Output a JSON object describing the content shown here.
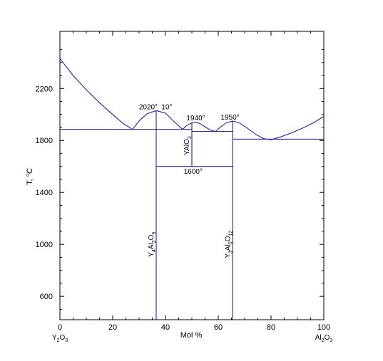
{
  "chart_data": {
    "type": "line",
    "title": "",
    "xlabel": "Mol %",
    "ylabel": "T, °C",
    "xlim": [
      0,
      100
    ],
    "ylim": [
      420,
      2640
    ],
    "x_ticks": [
      0,
      20,
      40,
      60,
      80,
      100
    ],
    "y_ticks": [
      600,
      1000,
      1400,
      1800,
      2200
    ],
    "end_members": {
      "left": {
        "base": "Y",
        "sub1": "2",
        "mid": "O",
        "sub2": "3"
      },
      "right": {
        "base": "Al",
        "sub1": "2",
        "mid": "O",
        "sub2": "3"
      }
    },
    "line_color": "#2222aa",
    "axis_color": "#000000",
    "grid": false,
    "series": [
      {
        "x": [
          0,
          5,
          10,
          15,
          20,
          24,
          27.5
        ],
        "y": [
          2430,
          2300,
          2190,
          2090,
          2000,
          1930,
          1885
        ]
      },
      {
        "x": [
          27.5,
          30,
          33,
          36.5,
          40,
          43,
          46.5
        ],
        "y": [
          1885,
          1950,
          2005,
          2030,
          2010,
          1950,
          1885
        ]
      },
      {
        "x": [
          46.5,
          48,
          50,
          51.5,
          53,
          55,
          57,
          59
        ],
        "y": [
          1885,
          1915,
          1935,
          1940,
          1932,
          1905,
          1880,
          1870
        ]
      },
      {
        "x": [
          59,
          61,
          63,
          65.5,
          68,
          71,
          74,
          77,
          80
        ],
        "y": [
          1870,
          1905,
          1935,
          1950,
          1935,
          1895,
          1850,
          1815,
          1805
        ]
      },
      {
        "x": [
          80,
          84,
          88,
          92,
          96,
          100
        ],
        "y": [
          1805,
          1830,
          1860,
          1895,
          1935,
          1985
        ]
      },
      {
        "x": [
          0,
          36.5
        ],
        "y": [
          1885,
          1885
        ]
      },
      {
        "x": [
          36.5,
          50
        ],
        "y": [
          1885,
          1885
        ]
      },
      {
        "x": [
          50,
          65.5
        ],
        "y": [
          1870,
          1870
        ]
      },
      {
        "x": [
          65.5,
          100
        ],
        "y": [
          1810,
          1810
        ]
      },
      {
        "x": [
          36.5,
          36.5
        ],
        "y": [
          420,
          2030
        ]
      },
      {
        "x": [
          50,
          50
        ],
        "y": [
          1600,
          1940
        ]
      },
      {
        "x": [
          65.5,
          65.5
        ],
        "y": [
          420,
          1950
        ]
      },
      {
        "x": [
          36.5,
          65.5
        ],
        "y": [
          1600,
          1600
        ]
      }
    ],
    "annotations": [
      {
        "text": "2020°",
        "x": 33.5,
        "y": 2040
      },
      {
        "text": "10°",
        "x": 40.5,
        "y": 2040
      },
      {
        "text": "1940°",
        "x": 51.5,
        "y": 1955
      },
      {
        "text": "1950°",
        "x": 64.5,
        "y": 1960
      },
      {
        "text": "1600°",
        "x": 50.5,
        "y": 1545
      }
    ],
    "compounds": [
      {
        "x": 36.5,
        "y": 1000,
        "base": "Y",
        "sub1": "4",
        "mid": "Al",
        "sub2": "2",
        "tail": "O",
        "sub3": "9"
      },
      {
        "x": 50,
        "y": 1760,
        "base": "YAlO",
        "sub1": "3",
        "mid": "",
        "sub2": "",
        "tail": "",
        "sub3": ""
      },
      {
        "x": 65.5,
        "y": 1000,
        "base": "Y",
        "sub1": "3",
        "mid": "Al",
        "sub2": "5",
        "tail": "O",
        "sub3": "12"
      }
    ]
  }
}
